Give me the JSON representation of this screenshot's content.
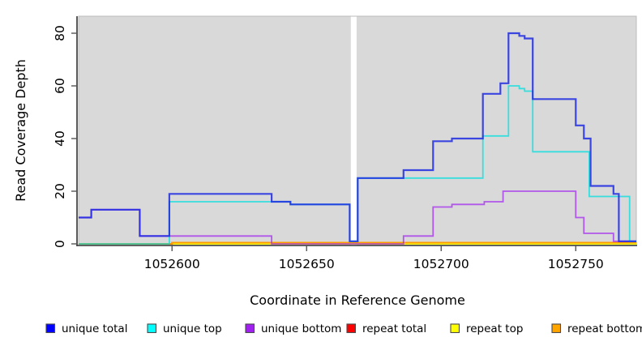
{
  "chart_data": {
    "type": "line",
    "subtype": "step-coverage",
    "title": "",
    "xlabel": "Coordinate in Reference Genome",
    "ylabel": "Read Coverage Depth",
    "xlim": [
      1052565.3,
      1052772.5
    ],
    "ylim": [
      0,
      86
    ],
    "x_ticks": [
      1052600,
      1052650,
      1052700,
      1052750
    ],
    "y_ticks": [
      0,
      20,
      40,
      60,
      80
    ],
    "grid": false,
    "panel_background": "#d9d9d9",
    "gap_region": {
      "x_start": 1052666,
      "x_end": 1052669,
      "color": "#ffffff"
    },
    "legend_position": "bottom",
    "series": [
      {
        "name": "repeat top",
        "color": "#FFFF00",
        "opacity": 1,
        "width": 1.8,
        "points": [
          [
            1052565.3,
            0
          ]
        ]
      },
      {
        "name": "repeat total",
        "color": "#FF0000",
        "opacity": 1,
        "width": 1.8,
        "points": [
          [
            1052565.3,
            0
          ],
          [
            1052600,
            0.5
          ]
        ]
      },
      {
        "name": "repeat bottom",
        "color": "#FFA500",
        "opacity": 0.95,
        "width": 1.8,
        "points": [
          [
            1052565.3,
            0
          ],
          [
            1052600,
            0.5
          ]
        ]
      },
      {
        "name": "unique bottom",
        "color": "#A020F0",
        "opacity": 0.7,
        "width": 1.8,
        "points": [
          [
            1052565.3,
            10
          ],
          [
            1052570,
            13
          ],
          [
            1052588,
            3
          ],
          [
            1052637,
            0
          ],
          [
            1052686,
            3
          ],
          [
            1052697,
            14
          ],
          [
            1052704,
            15
          ],
          [
            1052716,
            16
          ],
          [
            1052723,
            20
          ],
          [
            1052750,
            10
          ],
          [
            1052753,
            4
          ],
          [
            1052764,
            1
          ]
        ]
      },
      {
        "name": "unique top",
        "color": "#00DFDF",
        "opacity": 0.75,
        "width": 1.8,
        "points": [
          [
            1052565.3,
            0
          ],
          [
            1052599,
            16
          ],
          [
            1052644,
            15
          ],
          [
            1052666,
            1
          ],
          [
            1052669,
            25
          ],
          [
            1052715.5,
            41
          ],
          [
            1052725,
            60
          ],
          [
            1052729,
            59
          ],
          [
            1052731,
            58
          ],
          [
            1052734,
            35
          ],
          [
            1052755,
            18
          ],
          [
            1052770,
            1
          ]
        ]
      },
      {
        "name": "unique total",
        "color": "#1F2AE0",
        "opacity": 0.85,
        "width": 2.2,
        "points": [
          [
            1052565.3,
            10
          ],
          [
            1052570,
            13
          ],
          [
            1052588,
            3
          ],
          [
            1052599,
            19
          ],
          [
            1052637,
            16
          ],
          [
            1052644,
            15
          ],
          [
            1052666,
            1
          ],
          [
            1052669,
            25
          ],
          [
            1052686,
            28
          ],
          [
            1052697,
            39
          ],
          [
            1052704,
            40
          ],
          [
            1052715.5,
            57
          ],
          [
            1052722,
            61
          ],
          [
            1052725,
            80
          ],
          [
            1052729,
            79
          ],
          [
            1052731,
            78
          ],
          [
            1052734,
            55
          ],
          [
            1052750,
            45
          ],
          [
            1052753,
            40
          ],
          [
            1052755.5,
            22
          ],
          [
            1052764,
            19
          ],
          [
            1052766,
            1
          ]
        ]
      }
    ],
    "legend": [
      {
        "label": "unique total",
        "color": "#0000FF"
      },
      {
        "label": "unique top",
        "color": "#00FFFF"
      },
      {
        "label": "unique bottom",
        "color": "#A020F0"
      },
      {
        "label": "repeat total",
        "color": "#FF0000"
      },
      {
        "label": "repeat top",
        "color": "#FFFF00"
      },
      {
        "label": "repeat bottom",
        "color": "#FFA500"
      }
    ]
  }
}
